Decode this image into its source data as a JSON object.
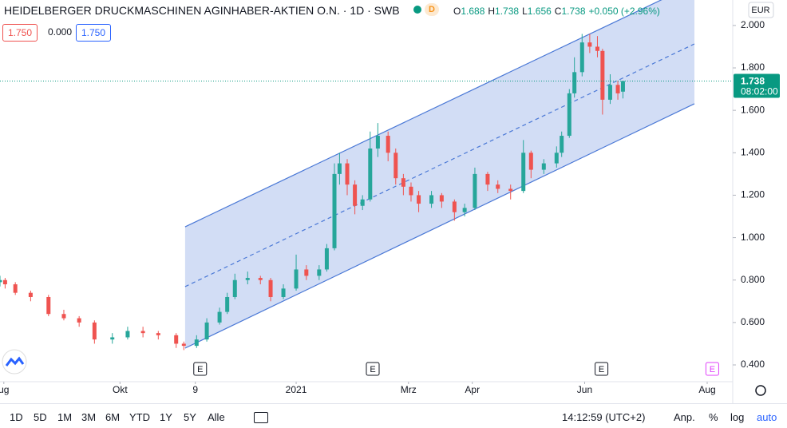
{
  "header": {
    "title": "HEIDELBERGER DRUCKMASCHINEN AGINHABER-AKTIEN O.N.",
    "interval": "1D",
    "exchange": "SWB",
    "badge": "D",
    "ohlc": [
      {
        "k": "O",
        "v": "1.688"
      },
      {
        "k": "H",
        "v": "1.738"
      },
      {
        "k": "L",
        "v": "1.656"
      },
      {
        "k": "C",
        "v": "1.738"
      }
    ],
    "change": "+0.050 (+2.96%)",
    "boxes": [
      "1.750",
      "0.000",
      "1.750"
    ],
    "currency": "EUR"
  },
  "toolbar": {
    "ranges": [
      "1D",
      "5D",
      "1M",
      "3M",
      "6M",
      "YTD",
      "1Y",
      "5Y",
      "Alle"
    ],
    "time": "14:12:59 (UTC+2)",
    "options": [
      "Anp.",
      "%",
      "log",
      "auto"
    ]
  },
  "chart_data": {
    "type": "candlestick",
    "xlim": [
      0,
      287
    ],
    "ylim": [
      0.321,
      2.12
    ],
    "yticks": [
      {
        "value": 0.4,
        "label": "0.400"
      },
      {
        "value": 0.6,
        "label": "0.600"
      },
      {
        "value": 0.8,
        "label": "0.800"
      },
      {
        "value": 1.0,
        "label": "1.000"
      },
      {
        "value": 1.2,
        "label": "1.200"
      },
      {
        "value": 1.4,
        "label": "1.400"
      },
      {
        "value": 1.6,
        "label": "1.600"
      },
      {
        "value": 1.8,
        "label": "1.800"
      },
      {
        "value": 2.0,
        "label": "2.000"
      }
    ],
    "xticks": [
      {
        "value": 1.5,
        "label": "ug"
      },
      {
        "value": 47,
        "label": "Okt"
      },
      {
        "value": 76.5,
        "label": "9"
      },
      {
        "value": 116,
        "label": "2021"
      },
      {
        "value": 160,
        "label": "Mrz"
      },
      {
        "value": 185,
        "label": "Apr"
      },
      {
        "value": 229,
        "label": "Jun"
      },
      {
        "value": 277,
        "label": "Aug"
      }
    ],
    "up_color": "#26a69a",
    "down_color": "#ef5350",
    "candles": {
      "x": [
        0,
        2,
        6,
        12,
        19,
        25,
        31,
        37,
        44,
        50,
        56,
        62,
        69,
        72,
        77,
        81,
        86,
        89,
        92,
        97,
        102,
        106,
        111,
        116,
        120,
        125,
        128,
        131,
        133,
        136,
        139,
        142,
        145,
        148,
        152,
        155,
        158,
        161,
        164,
        169,
        173,
        178,
        182,
        186,
        191,
        195,
        200,
        205,
        208,
        213,
        218,
        220,
        223,
        225,
        228,
        231,
        234,
        236,
        239,
        242,
        244
      ],
      "open": [
        0.79,
        0.8,
        0.78,
        0.74,
        0.72,
        0.64,
        0.62,
        0.6,
        0.52,
        0.53,
        0.56,
        0.55,
        0.54,
        0.5,
        0.49,
        0.52,
        0.6,
        0.65,
        0.72,
        0.8,
        0.81,
        0.8,
        0.72,
        0.76,
        0.85,
        0.82,
        0.85,
        0.95,
        1.3,
        1.35,
        1.25,
        1.15,
        1.18,
        1.42,
        1.48,
        1.4,
        1.28,
        1.24,
        1.2,
        1.16,
        1.2,
        1.17,
        1.12,
        1.14,
        1.3,
        1.25,
        1.23,
        1.22,
        1.4,
        1.32,
        1.35,
        1.4,
        1.48,
        1.68,
        1.78,
        1.92,
        1.9,
        1.88,
        1.65,
        1.72,
        1.688
      ],
      "high": [
        0.82,
        0.81,
        0.79,
        0.75,
        0.73,
        0.66,
        0.63,
        0.61,
        0.55,
        0.58,
        0.58,
        0.56,
        0.55,
        0.51,
        0.54,
        0.62,
        0.67,
        0.74,
        0.83,
        0.84,
        0.82,
        0.81,
        0.78,
        0.92,
        0.87,
        0.87,
        0.97,
        1.35,
        1.4,
        1.37,
        1.27,
        1.2,
        1.5,
        1.54,
        1.5,
        1.42,
        1.3,
        1.26,
        1.22,
        1.22,
        1.21,
        1.18,
        1.16,
        1.33,
        1.31,
        1.27,
        1.25,
        1.46,
        1.41,
        1.37,
        1.43,
        1.5,
        1.7,
        1.85,
        1.96,
        1.96,
        1.95,
        1.89,
        1.77,
        1.74,
        1.738
      ],
      "low": [
        0.77,
        0.76,
        0.73,
        0.7,
        0.63,
        0.61,
        0.58,
        0.5,
        0.5,
        0.52,
        0.53,
        0.52,
        0.48,
        0.47,
        0.48,
        0.51,
        0.59,
        0.64,
        0.71,
        0.78,
        0.78,
        0.7,
        0.71,
        0.75,
        0.8,
        0.8,
        0.84,
        0.94,
        1.25,
        1.2,
        1.11,
        1.13,
        1.17,
        1.38,
        1.36,
        1.25,
        1.2,
        1.17,
        1.12,
        1.14,
        1.14,
        1.08,
        1.1,
        1.13,
        1.22,
        1.21,
        1.18,
        1.21,
        1.28,
        1.3,
        1.33,
        1.38,
        1.47,
        1.66,
        1.76,
        1.87,
        1.85,
        1.58,
        1.63,
        1.65,
        1.656
      ],
      "close": [
        0.8,
        0.78,
        0.74,
        0.72,
        0.64,
        0.62,
        0.6,
        0.52,
        0.53,
        0.56,
        0.55,
        0.54,
        0.5,
        0.49,
        0.52,
        0.6,
        0.65,
        0.72,
        0.8,
        0.81,
        0.8,
        0.72,
        0.76,
        0.85,
        0.82,
        0.85,
        0.95,
        1.3,
        1.35,
        1.25,
        1.15,
        1.18,
        1.42,
        1.48,
        1.4,
        1.28,
        1.24,
        1.2,
        1.16,
        1.2,
        1.17,
        1.12,
        1.14,
        1.3,
        1.25,
        1.23,
        1.22,
        1.4,
        1.32,
        1.35,
        1.4,
        1.48,
        1.68,
        1.78,
        1.92,
        1.9,
        1.88,
        1.65,
        1.72,
        1.68,
        1.738
      ]
    },
    "channel": {
      "x": [
        72.5,
        272
      ],
      "center": [
        0.769,
        1.913
      ],
      "upper": [
        1.051,
        2.195
      ],
      "lower": [
        0.479,
        1.631
      ],
      "color": "#4a78d6"
    },
    "last_price": {
      "value": 1.738,
      "time": "08:02:00",
      "color": "#089981"
    },
    "events": [
      {
        "x": 78.4,
        "label": "E"
      },
      {
        "x": 146,
        "label": "E"
      },
      {
        "x": 235.6,
        "label": "E"
      },
      {
        "x": 279,
        "label": "E",
        "future": true
      }
    ]
  }
}
